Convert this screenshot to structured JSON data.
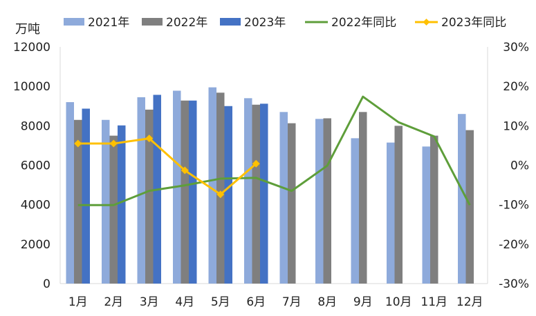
{
  "chart_data": {
    "type": "bar",
    "y_unit": "万吨",
    "categories": [
      "1月",
      "2月",
      "3月",
      "4月",
      "5月",
      "6月",
      "7月",
      "8月",
      "9月",
      "10月",
      "11月",
      "12月"
    ],
    "series": [
      {
        "name": "2021年",
        "kind": "bar",
        "axis": "left",
        "color": "#8eaadb",
        "values": [
          9200,
          8300,
          9450,
          9780,
          9950,
          9400,
          8700,
          8350,
          7370,
          7150,
          6950,
          8600
        ]
      },
      {
        "name": "2022年",
        "kind": "bar",
        "axis": "left",
        "color": "#7f7f7f",
        "values": [
          8300,
          7500,
          8820,
          9280,
          9680,
          9070,
          8130,
          8380,
          8700,
          8000,
          7500,
          7780
        ]
      },
      {
        "name": "2023年",
        "kind": "bar",
        "axis": "left",
        "color": "#4472c4",
        "values": [
          8870,
          8020,
          9570,
          9280,
          9000,
          9120,
          null,
          null,
          null,
          null,
          null,
          null
        ]
      },
      {
        "name": "2022年同比",
        "kind": "line",
        "axis": "right",
        "color": "#5e9e3a",
        "values": [
          -10.1,
          -10.1,
          -6.5,
          -5.1,
          -3.4,
          -3.2,
          -6.5,
          -0.1,
          17.4,
          10.9,
          7.3,
          -10.1
        ]
      },
      {
        "name": "2023年同比",
        "kind": "line",
        "axis": "right",
        "color": "#ffc000",
        "marker": "diamond",
        "values": [
          5.5,
          5.5,
          6.8,
          -1.3,
          -7.4,
          0.4,
          null,
          null,
          null,
          null,
          null,
          null
        ]
      }
    ],
    "y_left": {
      "min": 0,
      "max": 12000,
      "ticks": [
        "0",
        "2000",
        "4000",
        "6000",
        "8000",
        "10000",
        "12000"
      ]
    },
    "y_right": {
      "min": -30,
      "max": 30,
      "ticks": [
        "-30%",
        "-20%",
        "-10%",
        "0%",
        "10%",
        "20%",
        "30%"
      ]
    },
    "legend_position": "top",
    "grid": false
  }
}
